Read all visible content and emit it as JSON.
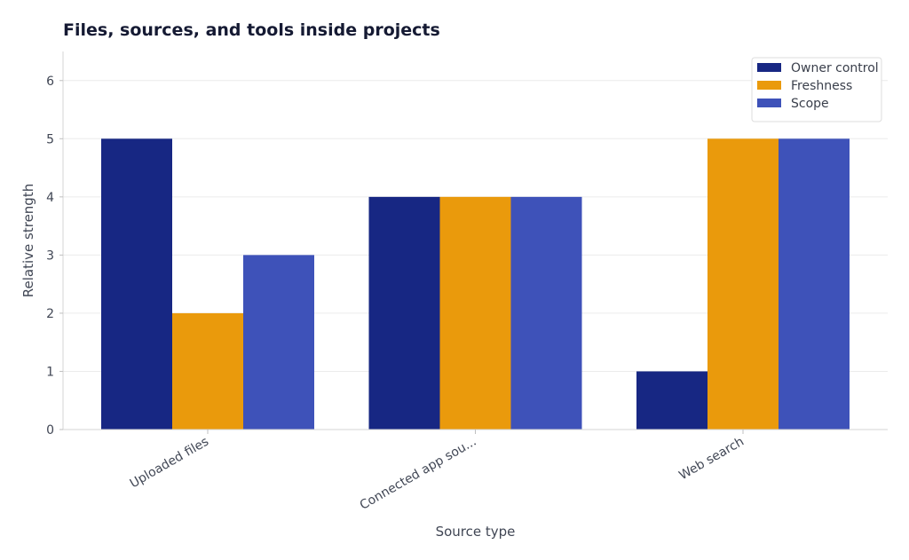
{
  "chart_data": {
    "type": "bar",
    "title": "Files, sources, and tools inside projects",
    "xlabel": "Source type",
    "ylabel": "Relative strength",
    "categories": [
      "Uploaded files",
      "Connected app sou...",
      "Web search"
    ],
    "series": [
      {
        "name": "Owner control",
        "values": [
          5,
          4,
          1
        ],
        "color": "#172783"
      },
      {
        "name": "Freshness",
        "values": [
          2,
          4,
          5
        ],
        "color": "#ea9a0c"
      },
      {
        "name": "Scope",
        "values": [
          3,
          4,
          5
        ],
        "color": "#3e52b9"
      }
    ],
    "ylim": [
      0,
      6.5
    ],
    "yticks": [
      "0",
      "1",
      "2",
      "3",
      "4",
      "5",
      "6"
    ],
    "grid": true,
    "legend_position": "top-right"
  }
}
